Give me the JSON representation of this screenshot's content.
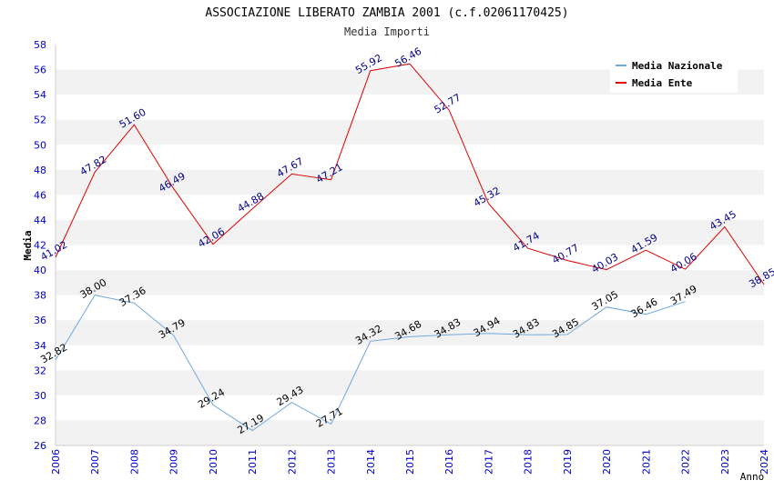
{
  "chart_data": {
    "type": "line",
    "title": "ASSOCIAZIONE LIBERATO ZAMBIA 2001 (c.f.02061170425)",
    "subtitle": "Media Importi",
    "xlabel": "Anno",
    "ylabel": "Media",
    "ylim": [
      26,
      58
    ],
    "y_ticks": [
      26,
      28,
      30,
      32,
      34,
      36,
      38,
      40,
      42,
      44,
      46,
      48,
      50,
      52,
      54,
      56,
      58
    ],
    "categories": [
      "2006",
      "2007",
      "2008",
      "2009",
      "2010",
      "2011",
      "2012",
      "2013",
      "2014",
      "2015",
      "2016",
      "2017",
      "2018",
      "2019",
      "2020",
      "2021",
      "2022",
      "2023",
      "2024"
    ],
    "grid": "horizontal bands",
    "legend_position": "top-right",
    "series": [
      {
        "name": "Media Nazionale",
        "color": "#6fa8e0",
        "label_color": "#000000",
        "values": [
          32.82,
          38.0,
          37.36,
          34.79,
          29.24,
          27.19,
          29.43,
          27.71,
          34.32,
          34.68,
          34.83,
          34.94,
          34.83,
          34.85,
          37.05,
          36.46,
          37.49,
          null,
          null
        ],
        "labels": [
          "32.82",
          "38.00",
          "37.36",
          "34.79",
          "29.24",
          "27.19",
          "29.43",
          "27.71",
          "34.32",
          "34.68",
          "34.83",
          "34.94",
          "34.83",
          "34.85",
          "37.05",
          "36.46",
          "37.49",
          null,
          null
        ]
      },
      {
        "name": "Media Ente",
        "color": "#e00000",
        "label_color": "#00008b",
        "values": [
          41.02,
          47.82,
          51.6,
          46.49,
          42.06,
          44.88,
          47.67,
          47.21,
          55.92,
          56.46,
          52.77,
          45.32,
          41.74,
          40.77,
          40.03,
          41.59,
          40.06,
          43.45,
          38.85
        ],
        "labels": [
          "41.02",
          "47.82",
          "51.60",
          "46.49",
          "42.06",
          "44.88",
          "47.67",
          "47.21",
          "55.92",
          "56.46",
          "52.77",
          "45.32",
          "41.74",
          "40.77",
          "40.03",
          "41.59",
          "40.06",
          "43.45",
          "38.85"
        ]
      }
    ],
    "colors": {
      "band": "#f2f2f2",
      "axis": "#cccccc",
      "tick_label": "#0000cc"
    }
  }
}
